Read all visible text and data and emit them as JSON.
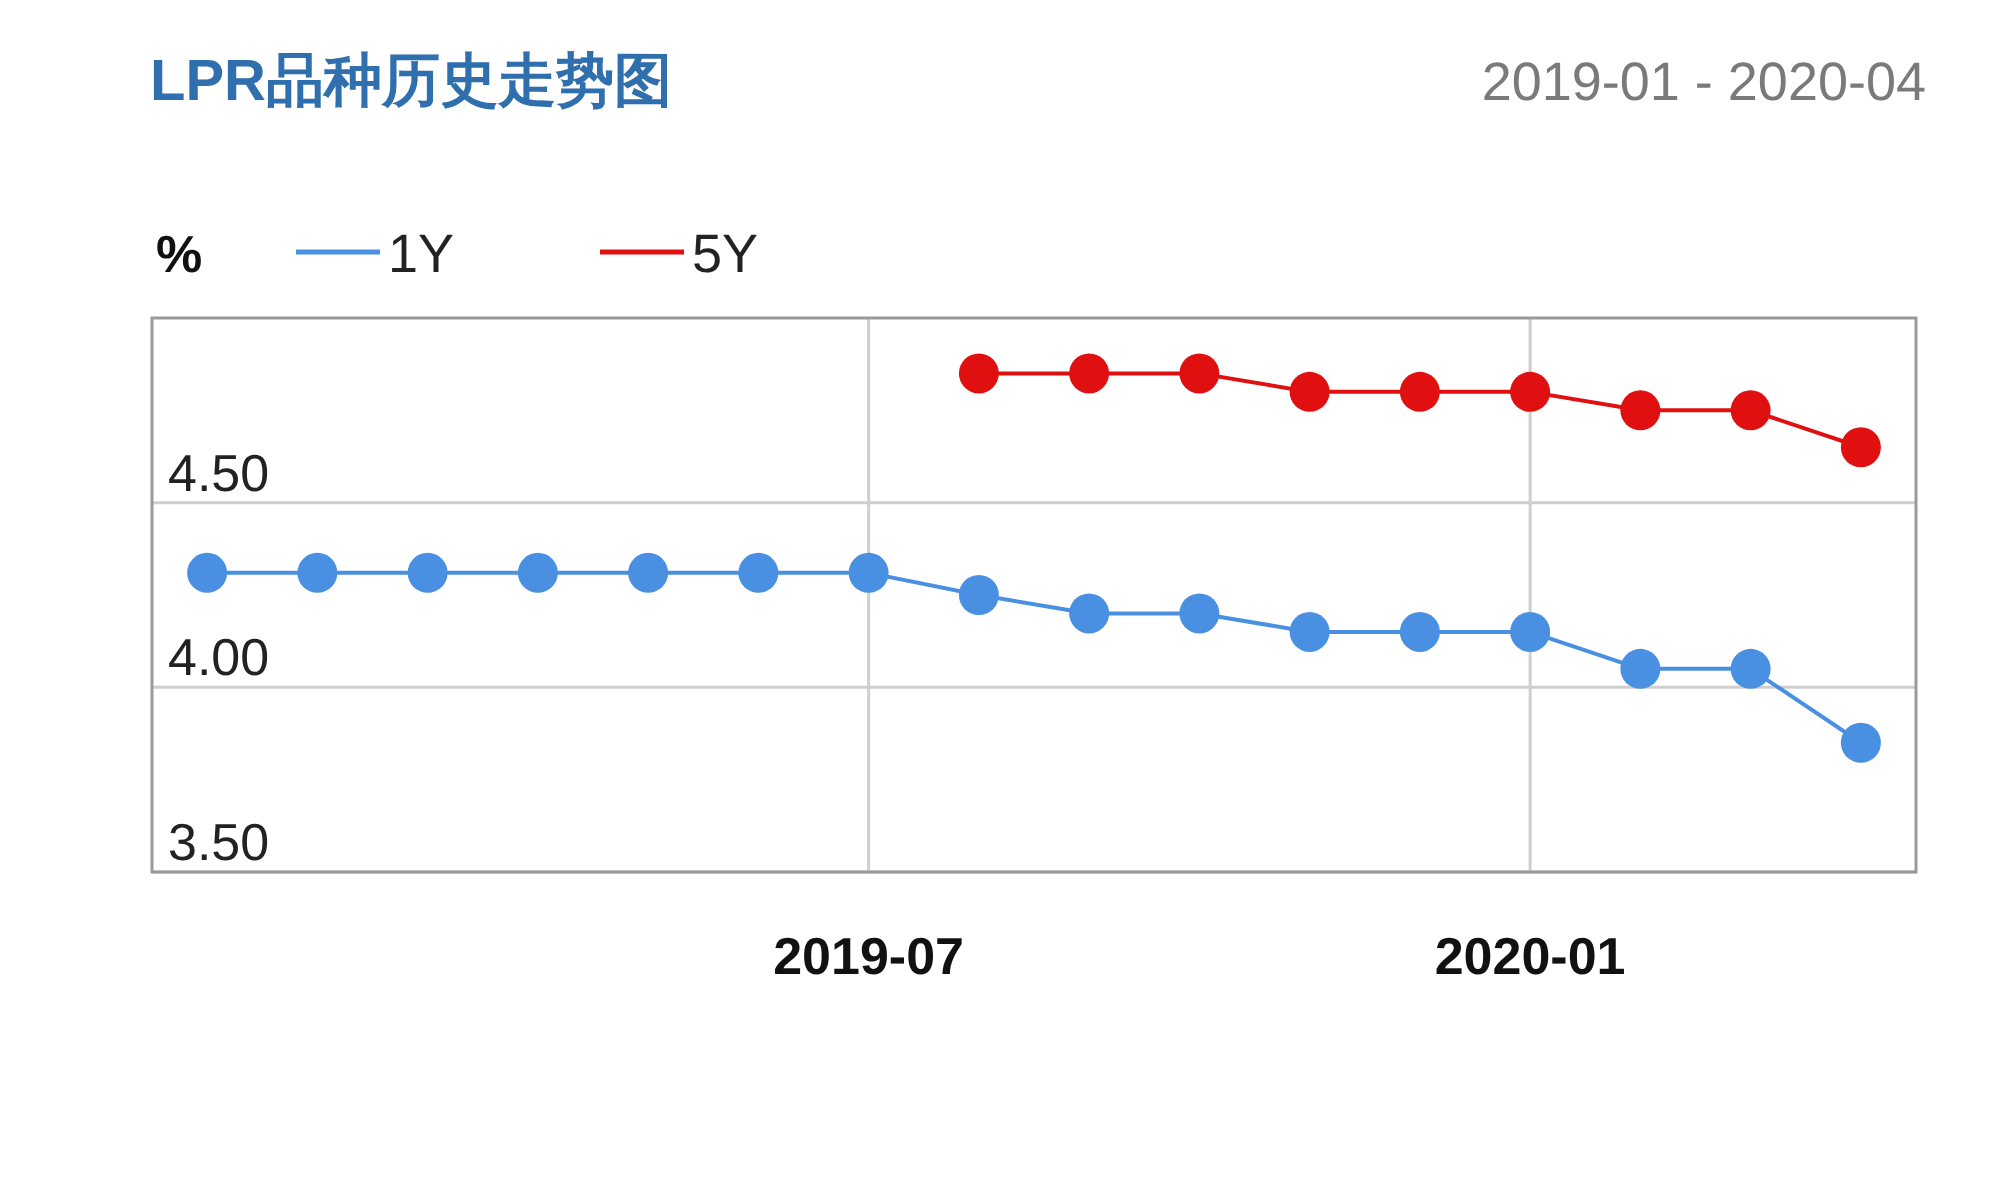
{
  "chart_data": {
    "type": "line",
    "title": "LPR品种历史走势图",
    "subtitle": "2019-01 - 2020-04",
    "ylabel": "%",
    "categories": [
      null,
      null,
      null,
      null,
      null,
      null,
      "2019-07",
      null,
      null,
      null,
      null,
      null,
      "2020-01",
      null,
      null,
      null
    ],
    "series": [
      {
        "name": "1Y",
        "color": "#4a90e2",
        "values": [
          4.31,
          4.31,
          4.31,
          4.31,
          4.31,
          4.31,
          4.31,
          4.25,
          4.2,
          4.2,
          4.15,
          4.15,
          4.15,
          4.05,
          4.05,
          3.85
        ]
      },
      {
        "name": "5Y",
        "color": "#e01010",
        "values": [
          null,
          null,
          null,
          null,
          null,
          null,
          null,
          4.85,
          4.85,
          4.85,
          4.8,
          4.8,
          4.8,
          4.75,
          4.75,
          4.65
        ]
      }
    ],
    "ylim": [
      3.5,
      5.0
    ],
    "yticks": [
      {
        "value": 3.5,
        "label": "3.50"
      },
      {
        "value": 4.0,
        "label": "4.00"
      },
      {
        "value": 4.5,
        "label": "4.50"
      }
    ],
    "grid": true,
    "legend": "top left",
    "marker": "circle",
    "line_style": "solid"
  }
}
